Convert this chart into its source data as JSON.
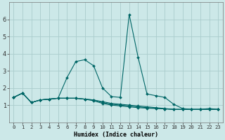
{
  "xlabel": "Humidex (Indice chaleur)",
  "bg_color": "#cce8e8",
  "grid_color": "#aacccc",
  "line_color": "#006666",
  "xlim": [
    -0.5,
    23.5
  ],
  "ylim": [
    0,
    7
  ],
  "yticks": [
    1,
    2,
    3,
    4,
    5,
    6
  ],
  "xticks": [
    0,
    1,
    2,
    3,
    4,
    5,
    6,
    7,
    8,
    9,
    10,
    11,
    12,
    13,
    14,
    15,
    16,
    17,
    18,
    19,
    20,
    21,
    22,
    23
  ],
  "series": [
    [
      1.45,
      1.7,
      1.15,
      1.3,
      1.35,
      1.4,
      2.6,
      3.55,
      3.65,
      3.3,
      2.0,
      1.5,
      1.45,
      6.3,
      3.8,
      1.65,
      1.55,
      1.45,
      1.05,
      0.8,
      0.75,
      0.75,
      0.8,
      0.75
    ],
    [
      1.45,
      1.7,
      1.15,
      1.3,
      1.35,
      1.4,
      1.4,
      1.4,
      1.35,
      1.3,
      1.2,
      1.1,
      1.05,
      1.0,
      0.95,
      0.9,
      0.85,
      0.8,
      0.75,
      0.75,
      0.75,
      0.75,
      0.75,
      0.75
    ],
    [
      1.45,
      1.7,
      1.15,
      1.3,
      1.35,
      1.4,
      1.4,
      1.4,
      1.35,
      1.3,
      1.15,
      1.05,
      1.0,
      0.95,
      0.9,
      0.85,
      0.82,
      0.78,
      0.75,
      0.75,
      0.75,
      0.75,
      0.75,
      0.75
    ],
    [
      1.45,
      1.7,
      1.15,
      1.3,
      1.35,
      1.4,
      1.4,
      1.4,
      1.35,
      1.25,
      1.1,
      1.0,
      0.95,
      0.9,
      0.85,
      0.82,
      0.8,
      0.78,
      0.75,
      0.75,
      0.75,
      0.75,
      0.75,
      0.75
    ]
  ],
  "marker": "D",
  "markersize": 2.0,
  "linewidth": 0.8,
  "xlabel_fontsize": 6.0,
  "tick_fontsize": 5.2,
  "ytick_fontsize": 6.0
}
